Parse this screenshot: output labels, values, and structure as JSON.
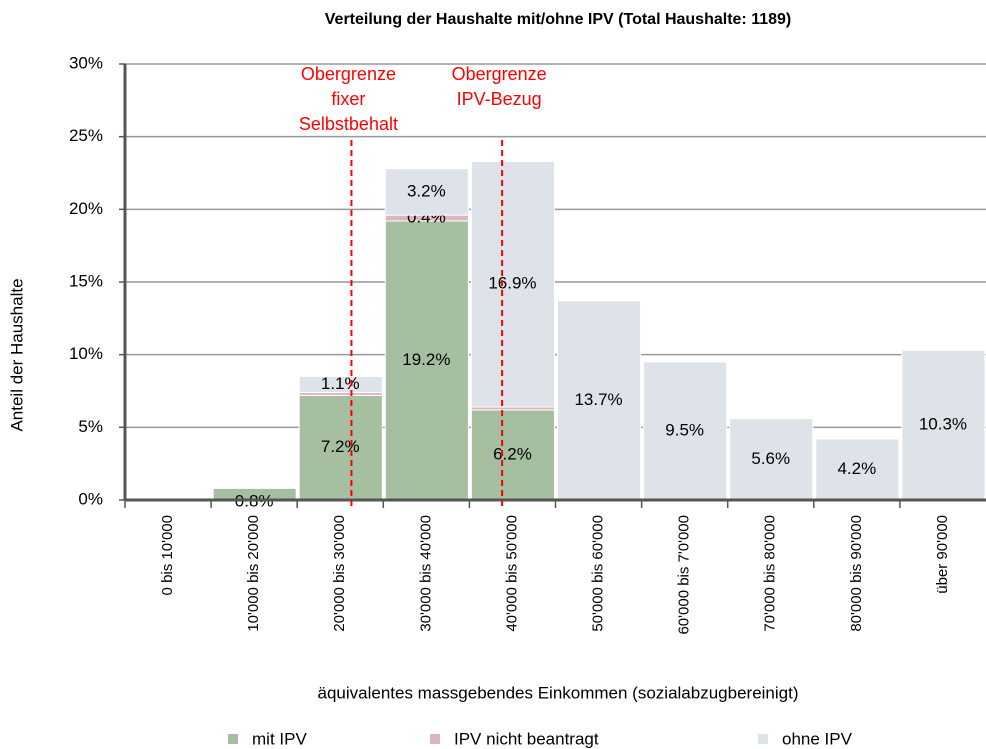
{
  "chart_data": {
    "type": "stacked_bar",
    "title": "Verteilung der Haushalte mit/ohne IPV (Total Haushalte: 1189)",
    "x_label": "äquivalentes massgebendes Einkommen (sozialabzugbereinigt)",
    "y_label": "Anteil der Haushalte",
    "categories": [
      "0 bis 10'000",
      "10'000 bis 20'000",
      "20'000 bis 30'000",
      "30'000 bis 40'000",
      "40'000 bis 50'000",
      "50'000 bis 60'000",
      "60'000 bis 7'0'000",
      "70'000 bis 80'000",
      "80'000 bis 90'000",
      "über 90'000"
    ],
    "series": [
      {
        "name": "mit IPV",
        "color": "#a6bfa0",
        "values": [
          0,
          0.8,
          7.2,
          19.2,
          6.2,
          0,
          0,
          0,
          0,
          0
        ],
        "value_labels": [
          null,
          "0.8%",
          "7.2%",
          "19.2%",
          "6.2%",
          null,
          null,
          null,
          null,
          null
        ]
      },
      {
        "name": "IPV nicht beantragt",
        "color": "#dbb5bf",
        "values": [
          0,
          0,
          0.2,
          0.4,
          0.2,
          0,
          0,
          0,
          0,
          0
        ],
        "value_labels": [
          null,
          null,
          null,
          "0.4%",
          null,
          null,
          null,
          null,
          null,
          null
        ]
      },
      {
        "name": "ohne IPV",
        "color": "#dde3e8",
        "values": [
          0,
          0,
          1.1,
          3.2,
          16.9,
          13.7,
          9.5,
          5.6,
          4.2,
          10.3
        ],
        "value_labels": [
          null,
          null,
          "1.1%",
          "3.2%",
          "16.9%",
          "13.7%",
          "9.5%",
          "5.6%",
          "4.2%",
          "10.3%"
        ]
      }
    ],
    "ylim": [
      0,
      30
    ],
    "yticks": [
      {
        "value": 0,
        "label": "0%"
      },
      {
        "value": 5,
        "label": "5%"
      },
      {
        "value": 10,
        "label": "10%"
      },
      {
        "value": 15,
        "label": "15%"
      },
      {
        "value": 20,
        "label": "20%"
      },
      {
        "value": 25,
        "label": "25%"
      },
      {
        "value": 30,
        "label": "30%"
      }
    ],
    "grid": true,
    "annotations": [
      {
        "lines": [
          "Obergrenze",
          "fixer",
          "Selbstbehalt"
        ],
        "x": 26300,
        "color": "#ff0000"
      },
      {
        "lines": [
          "Obergrenze",
          "IPV-Bezug"
        ],
        "x": 43800,
        "color": "#ff0000"
      }
    ],
    "bin_width": 10000
  }
}
